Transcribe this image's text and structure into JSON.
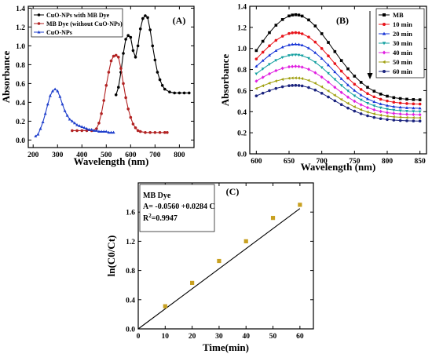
{
  "chart_data": [
    {
      "id": "A",
      "type": "line",
      "panel_label": "(A)",
      "xlabel": "Wavelength (nm)",
      "ylabel": "Absorbance",
      "xlim": [
        180,
        860
      ],
      "ylim": [
        -0.08,
        1.42
      ],
      "xticks": [
        200,
        300,
        400,
        500,
        600,
        700,
        800
      ],
      "yticks": [
        0.0,
        0.2,
        0.4,
        0.6,
        0.8,
        1.0,
        1.2,
        1.4
      ],
      "ytick_labels": [
        "0.0",
        "0.2",
        "0.4",
        "0.6",
        "0.8",
        "1.0",
        "1.2",
        "1.4"
      ],
      "legend_position": "top-left",
      "series": [
        {
          "name": "CuO-NPs with MB Dye",
          "color": "#000000",
          "marker": "circle",
          "x": [
            540,
            550,
            560,
            570,
            580,
            590,
            600,
            610,
            620,
            630,
            640,
            650,
            660,
            670,
            680,
            690,
            700,
            710,
            720,
            730,
            740,
            760,
            780,
            800,
            820,
            840
          ],
          "y": [
            0.48,
            0.56,
            0.72,
            0.92,
            1.07,
            1.11,
            1.09,
            0.95,
            0.88,
            1.0,
            1.18,
            1.29,
            1.32,
            1.3,
            1.17,
            1.0,
            0.85,
            0.72,
            0.64,
            0.58,
            0.54,
            0.51,
            0.5,
            0.5,
            0.5,
            0.5
          ]
        },
        {
          "name": "MB Dye (without CuO-NPs)",
          "color": "#b22222",
          "marker": "circle",
          "x": [
            360,
            380,
            400,
            420,
            440,
            460,
            470,
            480,
            490,
            500,
            510,
            520,
            530,
            540,
            550,
            560,
            570,
            580,
            590,
            600,
            610,
            620,
            630,
            640,
            660,
            680,
            700,
            720,
            740,
            750
          ],
          "y": [
            0.1,
            0.1,
            0.1,
            0.1,
            0.1,
            0.12,
            0.18,
            0.28,
            0.42,
            0.58,
            0.72,
            0.84,
            0.89,
            0.9,
            0.88,
            0.76,
            0.6,
            0.45,
            0.33,
            0.24,
            0.17,
            0.13,
            0.1,
            0.09,
            0.08,
            0.08,
            0.08,
            0.08,
            0.08,
            0.08
          ]
        },
        {
          "name": "CuO-NPs",
          "color": "#1f3fcc",
          "marker": "triangle",
          "x": [
            210,
            220,
            230,
            240,
            250,
            260,
            270,
            280,
            290,
            300,
            310,
            320,
            330,
            340,
            350,
            360,
            370,
            380,
            390,
            400,
            410,
            420,
            430,
            440,
            450,
            460,
            470,
            480,
            490,
            500,
            510,
            520,
            530
          ],
          "y": [
            0.04,
            0.06,
            0.12,
            0.19,
            0.28,
            0.38,
            0.47,
            0.52,
            0.54,
            0.52,
            0.46,
            0.38,
            0.31,
            0.26,
            0.22,
            0.2,
            0.18,
            0.16,
            0.15,
            0.14,
            0.13,
            0.12,
            0.11,
            0.11,
            0.1,
            0.1,
            0.09,
            0.09,
            0.09,
            0.09,
            0.08,
            0.08,
            0.08
          ]
        }
      ]
    },
    {
      "id": "B",
      "type": "line",
      "panel_label": "(B)",
      "xlabel": "Wavelength (nm)",
      "ylabel": "Absorbance",
      "xlim": [
        590,
        860
      ],
      "ylim": [
        0.0,
        1.4
      ],
      "xticks": [
        600,
        650,
        700,
        750,
        800,
        850
      ],
      "yticks": [
        0.0,
        0.2,
        0.4,
        0.6,
        0.8,
        1.0,
        1.2,
        1.4
      ],
      "ytick_labels": [
        "0.0",
        "0.2",
        "0.4",
        "0.6",
        "0.8",
        "1.0",
        "1.2",
        "1.4"
      ],
      "legend_position": "top-right",
      "legend_arrow": "down",
      "series": [
        {
          "name": "MB",
          "color": "#000000",
          "marker": "square",
          "peak": 1.32,
          "tail": 0.51,
          "start": 0.98
        },
        {
          "name": "10 min",
          "color": "#e8141b",
          "marker": "circle",
          "peak": 1.15,
          "tail": 0.47,
          "start": 0.9
        },
        {
          "name": "20 min",
          "color": "#1533d6",
          "marker": "triangle-up",
          "peak": 1.04,
          "tail": 0.43,
          "start": 0.83
        },
        {
          "name": "30 min",
          "color": "#13a0a0",
          "marker": "triangle-down",
          "peak": 0.94,
          "tail": 0.4,
          "start": 0.76
        },
        {
          "name": "40 min",
          "color": "#e020e0",
          "marker": "diamond",
          "peak": 0.83,
          "tail": 0.37,
          "start": 0.69
        },
        {
          "name": "50 min",
          "color": "#a0a010",
          "marker": "triangle-left",
          "peak": 0.72,
          "tail": 0.34,
          "start": 0.62
        },
        {
          "name": "60 min",
          "color": "#1a237e",
          "marker": "circle",
          "peak": 0.65,
          "tail": 0.31,
          "start": 0.55
        }
      ],
      "x_points": [
        600,
        610,
        620,
        630,
        640,
        650,
        655,
        660,
        665,
        670,
        680,
        690,
        700,
        710,
        720,
        730,
        740,
        750,
        760,
        770,
        780,
        790,
        800,
        810,
        820,
        830,
        840,
        850
      ]
    },
    {
      "id": "C",
      "type": "scatter",
      "panel_label": "(C)",
      "xlabel": "Time(min)",
      "ylabel": "ln(C0/Ct)",
      "xlim": [
        0,
        65
      ],
      "ylim": [
        0.0,
        2.0
      ],
      "xticks": [
        0,
        10,
        20,
        30,
        40,
        50,
        60
      ],
      "yticks": [
        0.0,
        0.4,
        0.8,
        1.2,
        1.6
      ],
      "ytick_labels": [
        "0.0",
        "0.4",
        "0.8",
        "1.2",
        "1.6"
      ],
      "annotation": {
        "title": "MB Dye",
        "equation": "A= -0.0560 +0.0284 C",
        "r2_prefix": "R",
        "r2_sup": "2",
        "r2_value": "=0.9947"
      },
      "points": {
        "color": "#c8a020",
        "x": [
          10,
          20,
          30,
          40,
          50,
          60
        ],
        "y": [
          0.31,
          0.63,
          0.93,
          1.2,
          1.52,
          1.7
        ]
      },
      "fit": {
        "intercept": -0.056,
        "slope": 0.0284,
        "x_range": [
          0,
          60
        ],
        "color": "#000000"
      }
    }
  ]
}
